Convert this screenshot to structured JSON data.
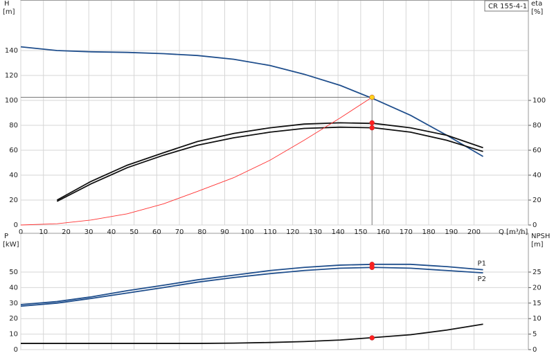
{
  "chart_data": [
    {
      "type": "line",
      "title": "CR 155-4-1",
      "xlabel": "Q [m³/h]",
      "ylabel": "H",
      "yunit": "[m]",
      "y2label": "eta",
      "y2unit": "[%]",
      "xlim": [
        0,
        224
      ],
      "xticks": [
        0,
        10,
        20,
        30,
        40,
        50,
        60,
        70,
        80,
        90,
        100,
        110,
        120,
        130,
        140,
        150,
        160,
        170,
        180,
        190,
        200
      ],
      "ylim": [
        0,
        180
      ],
      "yticks": [
        0,
        20,
        40,
        60,
        80,
        100,
        120,
        140
      ],
      "y2lim": [
        0,
        180
      ],
      "y2ticks": [
        0,
        20,
        40,
        60,
        80,
        100
      ],
      "grid": true,
      "series": [
        {
          "color": "#1f4e8c",
          "x": [
            0,
            16,
            31,
            47,
            63,
            78,
            94,
            110,
            125,
            141,
            156,
            172,
            188,
            204
          ],
          "values": [
            143,
            140,
            139,
            138.5,
            137.5,
            136,
            133,
            128,
            121,
            112,
            101,
            88,
            72,
            55
          ]
        },
        {
          "color": "#111111",
          "axis": "y2",
          "x": [
            16,
            31,
            47,
            63,
            78,
            94,
            110,
            125,
            141,
            156,
            172,
            188,
            204
          ],
          "values": [
            20,
            35,
            48,
            58,
            67,
            73.5,
            78,
            81,
            82,
            81.5,
            78,
            72,
            62
          ]
        },
        {
          "color": "#111111",
          "axis": "y2",
          "x": [
            16,
            31,
            47,
            63,
            78,
            94,
            110,
            125,
            141,
            156,
            172,
            188,
            204
          ],
          "values": [
            19,
            33,
            46,
            56,
            64,
            70,
            74.5,
            77.5,
            78.5,
            78,
            74.5,
            68,
            59
          ]
        },
        {
          "color": "#ff3030",
          "x": [
            0,
            16,
            31,
            47,
            63,
            78,
            94,
            110,
            125,
            141,
            155
          ],
          "values": [
            0,
            1,
            4,
            9,
            17,
            27,
            38,
            52,
            68,
            86,
            102.5
          ]
        }
      ],
      "points": [
        {
          "x": 155,
          "y": 102.5,
          "color": "#ffd21a"
        },
        {
          "x": 155,
          "y": 82,
          "axis": "y2",
          "color": "#ff2020"
        },
        {
          "x": 155,
          "y": 78,
          "axis": "y2",
          "color": "#ff2020"
        }
      ]
    },
    {
      "type": "line",
      "ylabel": "P",
      "yunit": "[kW]",
      "y2label": "NPSH",
      "y2unit": "[m]",
      "xlim": [
        0,
        224
      ],
      "xticks": [
        0,
        10,
        20,
        30,
        40,
        50,
        60,
        70,
        80,
        90,
        100,
        110,
        120,
        130,
        140,
        150,
        160,
        170,
        180,
        190,
        200
      ],
      "ylim": [
        0,
        75
      ],
      "yticks": [
        0,
        10,
        20,
        30,
        40,
        50
      ],
      "y2lim": [
        0,
        37.5
      ],
      "y2ticks": [
        0,
        5,
        10,
        15,
        20,
        25
      ],
      "grid": true,
      "series": [
        {
          "name": "P1",
          "color": "#1f4e8c",
          "x": [
            0,
            16,
            31,
            47,
            63,
            78,
            94,
            110,
            125,
            141,
            156,
            172,
            188,
            204
          ],
          "values": [
            29,
            31,
            34,
            38,
            41.5,
            45,
            48,
            51,
            53,
            54.5,
            55,
            55,
            53.5,
            51.5
          ]
        },
        {
          "name": "P2",
          "color": "#1f4e8c",
          "x": [
            0,
            16,
            31,
            47,
            63,
            78,
            94,
            110,
            125,
            141,
            156,
            172,
            188,
            204
          ],
          "values": [
            28,
            30,
            33,
            36.5,
            40,
            43.5,
            46.5,
            49,
            51,
            52.5,
            53,
            52.5,
            51,
            49.5
          ]
        },
        {
          "color": "#111111",
          "axis": "y2",
          "x": [
            0,
            16,
            31,
            47,
            63,
            78,
            94,
            110,
            125,
            141,
            156,
            172,
            188,
            204
          ],
          "values": [
            2,
            2,
            2,
            2,
            2,
            2,
            2.1,
            2.3,
            2.6,
            3.1,
            3.9,
            4.8,
            6.3,
            8.2
          ]
        }
      ],
      "points": [
        {
          "x": 155,
          "y": 55,
          "color": "#ff2020"
        },
        {
          "x": 155,
          "y": 53,
          "color": "#ff2020"
        },
        {
          "x": 155,
          "y": 3.8,
          "axis": "y2",
          "color": "#ff2020"
        }
      ]
    }
  ]
}
